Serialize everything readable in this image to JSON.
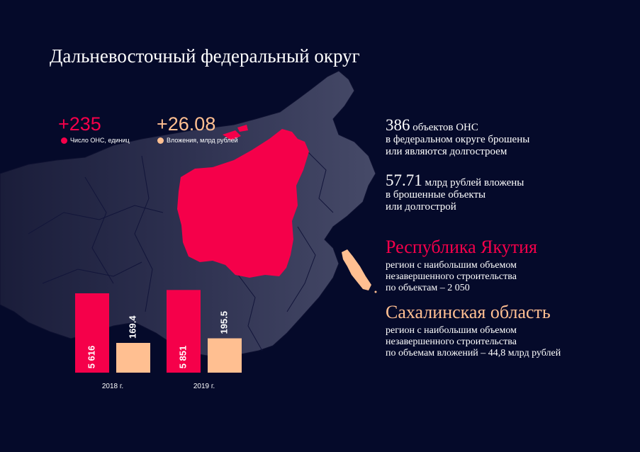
{
  "header": {
    "title": "Дальневосточный федеральный округ"
  },
  "kpis": [
    {
      "value": "+235",
      "label": "Число ОНС, единиц",
      "color": "#f5004a"
    },
    {
      "value": "+26.08",
      "label": "Вложения, млрд рублей",
      "color": "#ffbf91"
    }
  ],
  "stats": [
    {
      "number": "386",
      "unit": "объектов ОНС",
      "line1": "в федеральном округе брошены",
      "line2": "или являются долгостроем"
    },
    {
      "number": "57.71",
      "unit": "млрд рублей вложены",
      "line1": "в брошенные объекты",
      "line2": "или долгострой"
    }
  ],
  "regions": [
    {
      "name": "Республика Якутия",
      "color": "#f5004a",
      "line1": "регион с наибольшим объемом",
      "line2": "незавершенного строительства",
      "line3": "по объектам – 2 050"
    },
    {
      "name": "Сахалинская область",
      "color": "#ffbf91",
      "line1": "регион с наибольшим объемом",
      "line2": "незавершенного строительства",
      "line3": "по объемам вложений – 44,8 млрд рублей"
    }
  ],
  "chart_data": {
    "type": "bar",
    "categories": [
      "2018 г.",
      "2019 г."
    ],
    "series": [
      {
        "values": [
          5616,
          5851
        ],
        "labels": [
          "5 616",
          "5 851"
        ],
        "color": "#f5004a"
      },
      {
        "values": [
          169.4,
          195.5
        ],
        "labels": [
          "169.4",
          "195.5"
        ],
        "color": "#ffbf91"
      }
    ],
    "title": "",
    "xlabel": "",
    "ylabel": ""
  },
  "map": {
    "base_color": "#3a3d5c",
    "highlight_primary": "#f5004a",
    "highlight_secondary": "#ffbf91"
  }
}
